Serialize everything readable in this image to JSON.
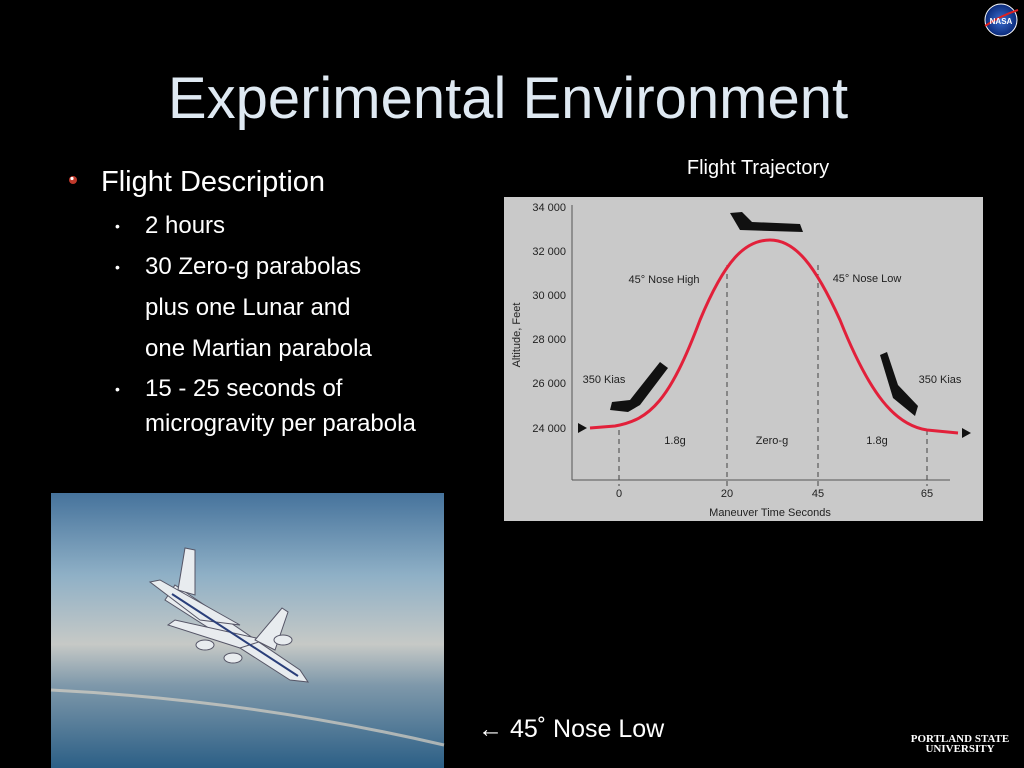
{
  "header": {
    "title": "Experimental Environment",
    "logo": "NASA"
  },
  "bullets": {
    "heading": "Flight Description",
    "items": [
      "2 hours",
      "30 Zero-g parabolas",
      "plus one Lunar and",
      "one Martian parabola",
      "15 - 25 seconds of",
      "microgravity per parabola"
    ]
  },
  "figure": {
    "caption": "Flight Trajectory",
    "y_axis_label": "Altitude, Feet",
    "x_axis_label": "Maneuver Time Seconds",
    "yticks": [
      "34 000",
      "32 000",
      "30 000",
      "28 000",
      "26 000",
      "24 000"
    ],
    "xticks": [
      "0",
      "20",
      "45",
      "65"
    ],
    "annotations": [
      "45° Nose High",
      "45° Nose Low",
      "350 Kias",
      "350 Kias",
      "1.8g",
      "Zero-g",
      "1.8g"
    ]
  },
  "photo": {
    "caption": "← 45˚ Nose Low"
  },
  "footer": {
    "logo_line1": "PORTLAND STATE",
    "logo_line2": "UNIVERSITY"
  }
}
